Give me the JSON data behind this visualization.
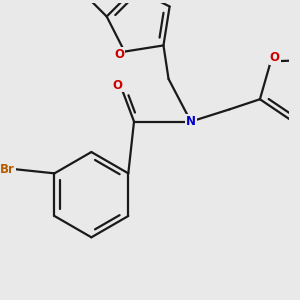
{
  "bg_color": "#e9e9e9",
  "bond_color": "#1a1a1a",
  "bond_width": 1.6,
  "atom_colors": {
    "O": "#cc0000",
    "N": "#0000cc",
    "Br": "#b85c00",
    "C": "#1a1a1a"
  },
  "font_size_atom": 8.5
}
